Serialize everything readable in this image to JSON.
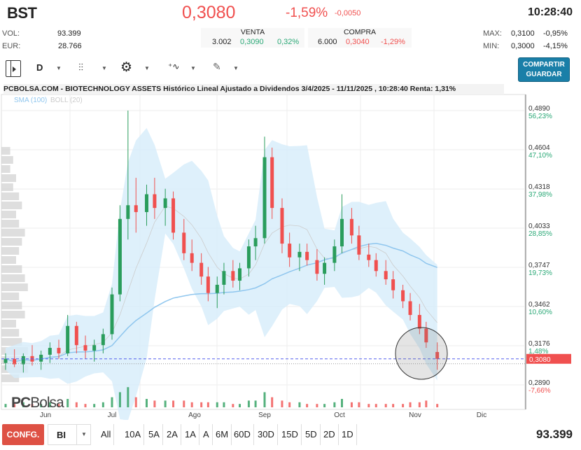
{
  "header": {
    "symbol": "BST",
    "price": "0,3080",
    "change_pct": "-1,59%",
    "change_abs": "-0,0050",
    "time": "10:28:40"
  },
  "stats": {
    "vol_label": "VOL:",
    "vol": "93.399",
    "eur_label": "EUR:",
    "eur": "28.766",
    "max_label": "MAX:",
    "max": "0,3100",
    "max_pct": "-0,95%",
    "min_label": "MIN:",
    "min": "0,3000",
    "min_pct": "-4,15%"
  },
  "venta": {
    "label": "VENTA",
    "qty": "3.002",
    "price": "0,3090",
    "pct": "0,32%"
  },
  "compra": {
    "label": "COMPRA",
    "qty": "6.000",
    "price": "0,3040",
    "pct": "-1,29%"
  },
  "toolbar": {
    "period": "D",
    "share": "COMPARTIR",
    "save": "GUARDAR"
  },
  "chart_title": "PCBOLSA.COM - BIOTECHNOLOGY ASSETS Histórico Lineal Ajustado a Dividendos 3/4/2025 - 11/11/2025 , 10:28:40 Renta: 1,31%",
  "legend": {
    "sma": "SMA (100)",
    "boll": "BOLL (20)"
  },
  "logo": "PCBolsa",
  "colors": {
    "up": "#2a9d5c",
    "down": "#f0504f",
    "band": "#d6ecfa",
    "sma": "#8fc6ee",
    "accent": "#1a7fa8"
  },
  "chart_data": {
    "type": "candlestick",
    "y_ticks": [
      {
        "v": "0,4890",
        "p": "56,23%"
      },
      {
        "v": "0,4604",
        "p": "47,10%"
      },
      {
        "v": "0,4318",
        "p": "37,98%"
      },
      {
        "v": "0,4033",
        "p": "28,85%"
      },
      {
        "v": "0,3747",
        "p": "19,73%"
      },
      {
        "v": "0,3462",
        "p": "10,60%"
      },
      {
        "v": "0,3176",
        "p": "1,48%"
      },
      {
        "v": "0,2890",
        "p": "-7,66%"
      }
    ],
    "ylim": [
      0.289,
      0.489
    ],
    "x_ticks": [
      "Jun",
      "Jul",
      "Ago",
      "Sep",
      "Oct",
      "Nov",
      "Dic"
    ],
    "last_price": 0.308,
    "last_label": "0,3080",
    "candles": [
      [
        "2025-05-14",
        0.305,
        0.312,
        0.3,
        0.308,
        2
      ],
      [
        "2025-05-18",
        0.308,
        0.315,
        0.302,
        0.304,
        2
      ],
      [
        "2025-05-22",
        0.304,
        0.312,
        0.298,
        0.31,
        3
      ],
      [
        "2025-05-26",
        0.31,
        0.318,
        0.303,
        0.306,
        2
      ],
      [
        "2025-05-30",
        0.306,
        0.314,
        0.3,
        0.311,
        2
      ],
      [
        "2025-06-03",
        0.311,
        0.32,
        0.305,
        0.316,
        3
      ],
      [
        "2025-06-07",
        0.316,
        0.322,
        0.308,
        0.312,
        2
      ],
      [
        "2025-06-11",
        0.312,
        0.34,
        0.31,
        0.332,
        5
      ],
      [
        "2025-06-15",
        0.332,
        0.335,
        0.312,
        0.318,
        3
      ],
      [
        "2025-06-19",
        0.318,
        0.325,
        0.308,
        0.314,
        2
      ],
      [
        "2025-06-23",
        0.314,
        0.322,
        0.306,
        0.318,
        2
      ],
      [
        "2025-06-27",
        0.318,
        0.33,
        0.312,
        0.326,
        3
      ],
      [
        "2025-07-01",
        0.326,
        0.36,
        0.322,
        0.355,
        6
      ],
      [
        "2025-07-04",
        0.355,
        0.42,
        0.35,
        0.41,
        9
      ],
      [
        "2025-07-07",
        0.41,
        0.489,
        0.395,
        0.42,
        12
      ],
      [
        "2025-07-10",
        0.42,
        0.44,
        0.4,
        0.415,
        6
      ],
      [
        "2025-07-14",
        0.415,
        0.435,
        0.405,
        0.428,
        5
      ],
      [
        "2025-07-17",
        0.428,
        0.44,
        0.41,
        0.418,
        4
      ],
      [
        "2025-07-21",
        0.418,
        0.432,
        0.405,
        0.425,
        4
      ],
      [
        "2025-07-24",
        0.425,
        0.43,
        0.395,
        0.4,
        4
      ],
      [
        "2025-07-28",
        0.4,
        0.41,
        0.38,
        0.385,
        4
      ],
      [
        "2025-07-31",
        0.385,
        0.395,
        0.372,
        0.378,
        3
      ],
      [
        "2025-08-04",
        0.378,
        0.385,
        0.362,
        0.368,
        3
      ],
      [
        "2025-08-07",
        0.368,
        0.375,
        0.35,
        0.356,
        3
      ],
      [
        "2025-08-11",
        0.356,
        0.368,
        0.345,
        0.362,
        3
      ],
      [
        "2025-08-14",
        0.362,
        0.378,
        0.355,
        0.372,
        3
      ],
      [
        "2025-08-18",
        0.372,
        0.38,
        0.36,
        0.365,
        2
      ],
      [
        "2025-08-21",
        0.365,
        0.378,
        0.358,
        0.374,
        2
      ],
      [
        "2025-08-25",
        0.374,
        0.395,
        0.368,
        0.39,
        4
      ],
      [
        "2025-08-28",
        0.39,
        0.405,
        0.38,
        0.396,
        4
      ],
      [
        "2025-09-01",
        0.396,
        0.47,
        0.392,
        0.455,
        9
      ],
      [
        "2025-09-04",
        0.455,
        0.462,
        0.41,
        0.418,
        6
      ],
      [
        "2025-09-08",
        0.418,
        0.425,
        0.385,
        0.392,
        4
      ],
      [
        "2025-09-11",
        0.392,
        0.4,
        0.375,
        0.382,
        3
      ],
      [
        "2025-09-15",
        0.382,
        0.392,
        0.372,
        0.386,
        3
      ],
      [
        "2025-09-18",
        0.386,
        0.392,
        0.376,
        0.38,
        2
      ],
      [
        "2025-09-22",
        0.38,
        0.388,
        0.365,
        0.37,
        2
      ],
      [
        "2025-09-25",
        0.37,
        0.382,
        0.362,
        0.378,
        2
      ],
      [
        "2025-09-29",
        0.378,
        0.395,
        0.372,
        0.39,
        3
      ],
      [
        "2025-10-02",
        0.39,
        0.428,
        0.385,
        0.41,
        5
      ],
      [
        "2025-10-06",
        0.41,
        0.418,
        0.392,
        0.398,
        3
      ],
      [
        "2025-10-09",
        0.398,
        0.405,
        0.38,
        0.384,
        3
      ],
      [
        "2025-10-13",
        0.384,
        0.392,
        0.375,
        0.38,
        2
      ],
      [
        "2025-10-16",
        0.38,
        0.385,
        0.368,
        0.372,
        2
      ],
      [
        "2025-10-20",
        0.372,
        0.38,
        0.362,
        0.366,
        2
      ],
      [
        "2025-10-23",
        0.366,
        0.372,
        0.352,
        0.358,
        2
      ],
      [
        "2025-10-27",
        0.358,
        0.362,
        0.345,
        0.35,
        2
      ],
      [
        "2025-10-30",
        0.35,
        0.356,
        0.336,
        0.34,
        3
      ],
      [
        "2025-11-03",
        0.34,
        0.348,
        0.326,
        0.33,
        3
      ],
      [
        "2025-11-06",
        0.33,
        0.335,
        0.316,
        0.32,
        4
      ],
      [
        "2025-11-11",
        0.313,
        0.32,
        0.3,
        0.308,
        2
      ]
    ],
    "volume_profile": [
      0.3,
      0.4,
      0.3,
      0.5,
      0.4,
      0.6,
      0.7,
      0.5,
      0.6,
      0.8,
      0.7,
      0.6,
      0.5,
      0.7,
      0.8,
      0.9,
      0.6,
      0.7,
      0.8,
      0.5,
      0.6,
      0.7,
      0.9,
      1.0,
      0.9,
      0.6
    ]
  },
  "footer": {
    "config": "CONFG.",
    "type": "BI",
    "periods": [
      "All",
      "10A",
      "5A",
      "2A",
      "1A",
      "A",
      "6M",
      "60D",
      "30D",
      "15D",
      "5D",
      "2D",
      "1D"
    ],
    "volume": "93.399"
  }
}
